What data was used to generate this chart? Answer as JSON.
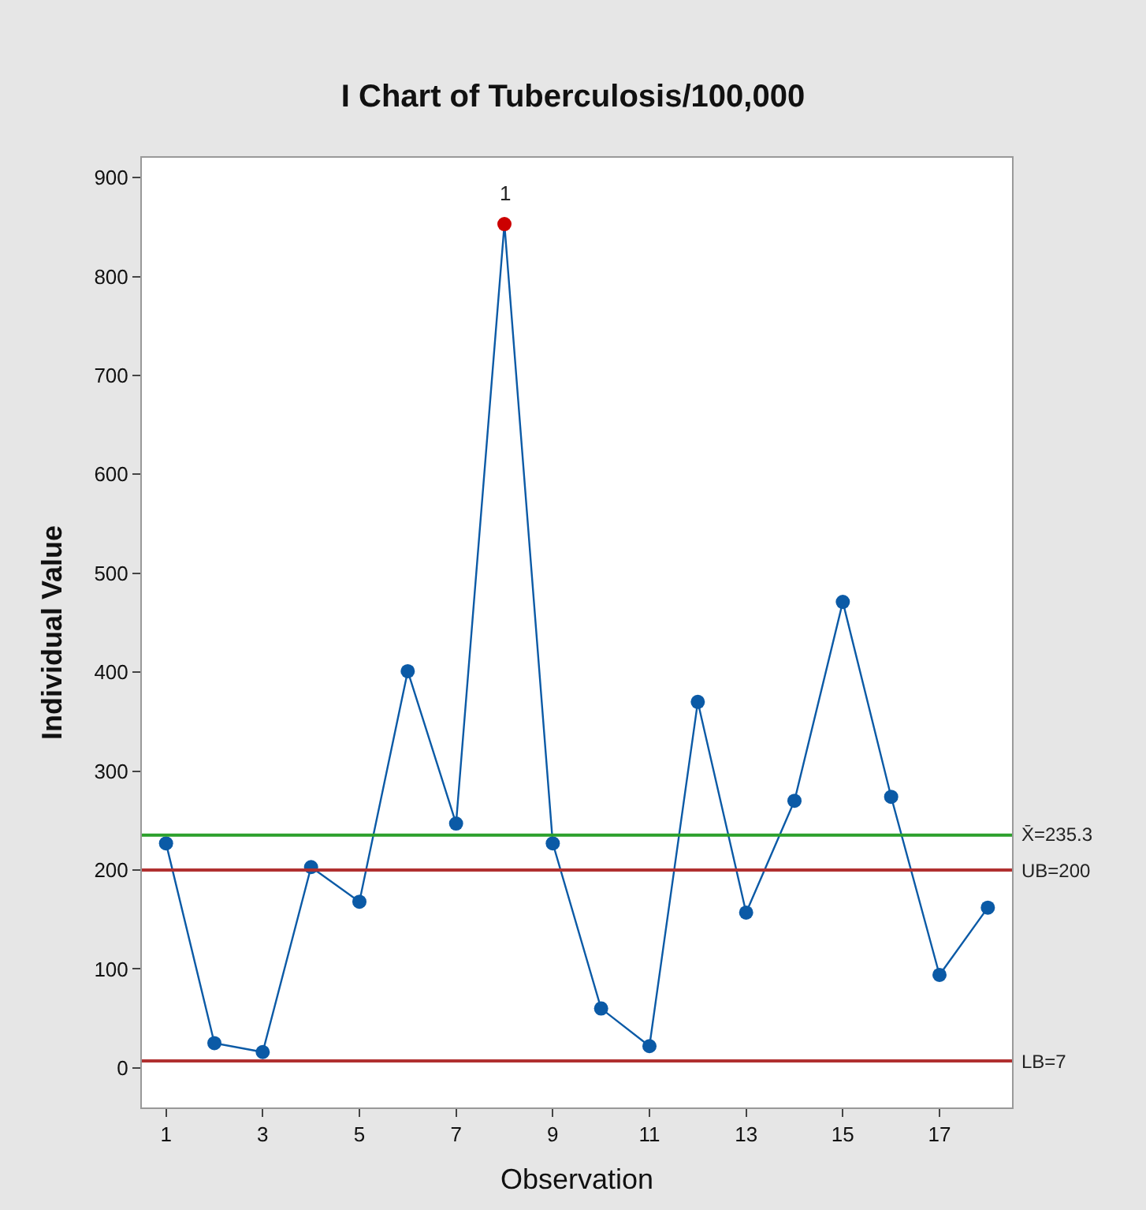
{
  "chart_data": {
    "type": "line",
    "title": "I Chart of Tuberculosis/100,000",
    "xlabel": "Observation",
    "ylabel": "Individual Value",
    "x": [
      1,
      2,
      3,
      4,
      5,
      6,
      7,
      8,
      9,
      10,
      11,
      12,
      13,
      14,
      15,
      16,
      17,
      18
    ],
    "series": [
      {
        "color": "#0b5aa6",
        "values": [
          227,
          25,
          16,
          203,
          168,
          401,
          247,
          853,
          227,
          60,
          22,
          370,
          157,
          270,
          471,
          274,
          94,
          162
        ],
        "colors": [
          "#0b5aa6",
          "#0b5aa6",
          "#0b5aa6",
          "#0b5aa6",
          "#0b5aa6",
          "#0b5aa6",
          "#0b5aa6",
          "#cc0000",
          "#0b5aa6",
          "#0b5aa6",
          "#0b5aa6",
          "#0b5aa6",
          "#0b5aa6",
          "#0b5aa6",
          "#0b5aa6",
          "#0b5aa6",
          "#0b5aa6",
          "#0b5aa6"
        ]
      }
    ],
    "xlim": [
      0.5,
      18.5
    ],
    "xticks": [
      1,
      3,
      5,
      7,
      9,
      11,
      13,
      15,
      17
    ],
    "ylim": [
      -40,
      920
    ],
    "yticks": [
      0,
      100,
      200,
      300,
      400,
      500,
      600,
      700,
      800,
      900
    ],
    "ref_lines": [
      {
        "axis": "y",
        "value": 235.3,
        "label": "X̄=235.3",
        "color": "#2ca02c"
      },
      {
        "axis": "y",
        "value": 200,
        "label": "UB=200",
        "color": "#b03030"
      },
      {
        "axis": "y",
        "value": 7,
        "label": "LB=7",
        "color": "#b03030"
      }
    ],
    "annotations": [
      {
        "text": "1",
        "x": 8,
        "y": 853
      }
    ],
    "marker": "circle",
    "line_style": "solid",
    "legend": false
  }
}
